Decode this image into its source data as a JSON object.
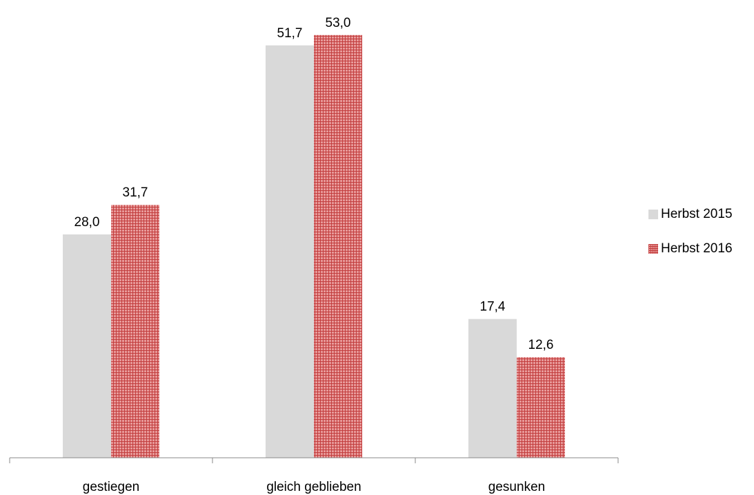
{
  "chart_data": {
    "type": "bar",
    "categories": [
      "gestiegen",
      "gleich geblieben",
      "gesunken"
    ],
    "series": [
      {
        "name": "Herbst 2015",
        "values": [
          28.0,
          51.7,
          17.4
        ],
        "value_labels": [
          "28,0",
          "51,7",
          "17,4"
        ],
        "color": "#d9d9d9",
        "pattern": "solid"
      },
      {
        "name": "Herbst 2016",
        "values": [
          31.7,
          53.0,
          12.6
        ],
        "value_labels": [
          "31,7",
          "53,0",
          "12,6"
        ],
        "color": "#e06666",
        "pattern": "grid"
      }
    ],
    "ylim": [
      0,
      55
    ],
    "title": "",
    "xlabel": "",
    "ylabel": "",
    "legend_position": "right",
    "grid": false
  }
}
